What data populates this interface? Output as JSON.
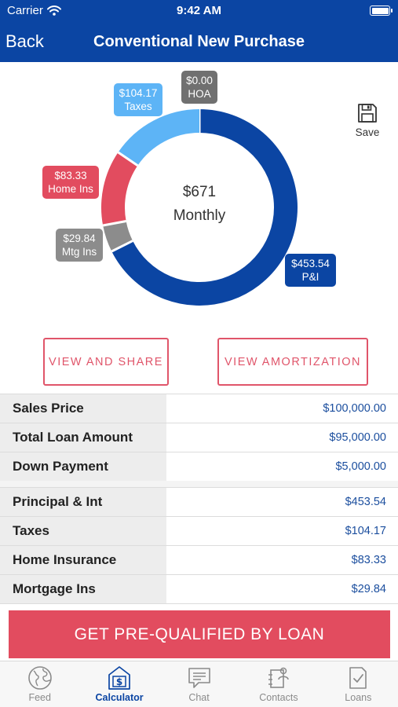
{
  "status_bar": {
    "carrier": "Carrier",
    "time": "9:42 AM"
  },
  "nav": {
    "back_label": "Back",
    "title": "Conventional New Purchase"
  },
  "summary": {
    "total": "$671",
    "period": "Monthly"
  },
  "segments": [
    {
      "name": "P&I",
      "amount": "$453.54",
      "value": 453.54,
      "color": "#0b45a3"
    },
    {
      "name": "Mtg Ins",
      "amount": "$29.84",
      "value": 29.84,
      "color": "#8c8c8c"
    },
    {
      "name": "Home Ins",
      "amount": "$83.33",
      "value": 83.33,
      "color": "#e24c5f"
    },
    {
      "name": "Taxes",
      "amount": "$104.17",
      "value": 104.17,
      "color": "#5db4f6"
    },
    {
      "name": "HOA",
      "amount": "$0.00",
      "value": 0,
      "color": "#707070"
    }
  ],
  "save_label": "Save",
  "buttons": {
    "share": "VIEW AND SHARE",
    "amortization": "VIEW AMORTIZATION"
  },
  "loan_table": [
    {
      "label": "Sales Price",
      "value": "$100,000.00"
    },
    {
      "label": "Total Loan Amount",
      "value": "$95,000.00"
    },
    {
      "label": "Down Payment",
      "value": "$5,000.00"
    }
  ],
  "payment_table": [
    {
      "label": "Principal & Int",
      "value": "$453.54"
    },
    {
      "label": "Taxes",
      "value": "$104.17"
    },
    {
      "label": "Home Insurance",
      "value": "$83.33"
    },
    {
      "label": "Mortgage Ins",
      "value": "$29.84"
    }
  ],
  "cta_label": "GET PRE-QUALIFIED BY LOAN",
  "tabs": [
    {
      "label": "Feed",
      "icon": "globe-icon"
    },
    {
      "label": "Calculator",
      "icon": "calculator-dollar-icon",
      "active": true
    },
    {
      "label": "Chat",
      "icon": "chat-icon"
    },
    {
      "label": "Contacts",
      "icon": "contacts-icon"
    },
    {
      "label": "Loans",
      "icon": "document-check-icon"
    }
  ],
  "colors": {
    "primary": "#0b45a3",
    "accent": "#e24c5f",
    "value_text": "#1b4e9e"
  }
}
